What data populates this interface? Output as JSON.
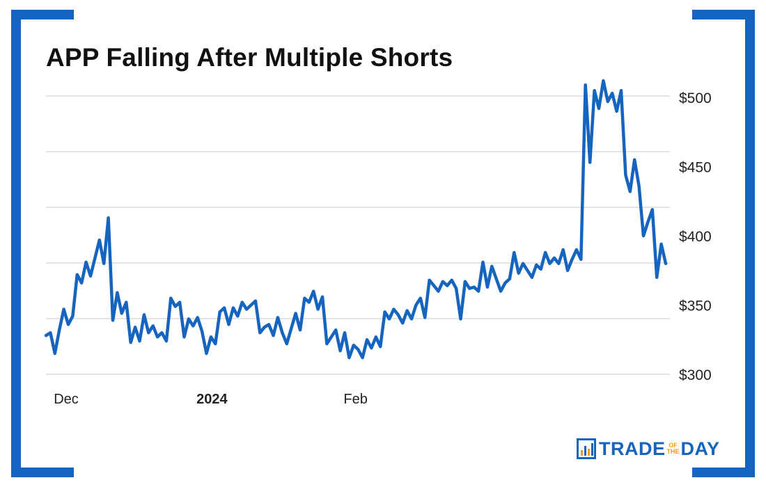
{
  "title": "APP Falling After Multiple Shorts",
  "logo": {
    "word1": "TRADE",
    "small1": "OF",
    "small2": "THE",
    "word2": "DAY",
    "brand_color": "#1565c0",
    "accent_color": "#f39c12",
    "icon": "bar-chart-icon"
  },
  "colors": {
    "line": "#1565c0",
    "grid": "#c8c8c8",
    "frame": "#1565c0"
  },
  "chart_data": {
    "type": "line",
    "title": "APP Falling After Multiple Shorts",
    "xlabel": "",
    "ylabel": "",
    "ylim": [
      300,
      500
    ],
    "y_ticks": [
      {
        "value": 300,
        "label": "$300"
      },
      {
        "value": 350,
        "label": "$350"
      },
      {
        "value": 400,
        "label": "$400"
      },
      {
        "value": 450,
        "label": "$450"
      },
      {
        "value": 500,
        "label": "$500"
      }
    ],
    "x_ticks": [
      {
        "index": 3,
        "label": "Dec",
        "bold": false
      },
      {
        "index": 35,
        "label": "2024",
        "bold": true
      },
      {
        "index": 68,
        "label": "Feb",
        "bold": false
      }
    ],
    "grid": "horizontal",
    "legend": "none",
    "series": [
      {
        "values": [
          328,
          330,
          315,
          332,
          347,
          336,
          342,
          372,
          366,
          381,
          371,
          384,
          397,
          380,
          413,
          339,
          359,
          344,
          352,
          323,
          334,
          324,
          343,
          330,
          335,
          327,
          330,
          324,
          355,
          349,
          352,
          327,
          340,
          335,
          341,
          331,
          315,
          327,
          322,
          345,
          348,
          336,
          348,
          342,
          352,
          347,
          350,
          353,
          330,
          334,
          336,
          328,
          341,
          330,
          322,
          333,
          344,
          332,
          355,
          352,
          360,
          347,
          356,
          322,
          327,
          332,
          317,
          330,
          312,
          321,
          318,
          312,
          325,
          319,
          327,
          320,
          345,
          340,
          347,
          343,
          337,
          346,
          340,
          350,
          355,
          341,
          368,
          364,
          360,
          367,
          364,
          368,
          362,
          340,
          367,
          362,
          363,
          360,
          381,
          363,
          378,
          369,
          360,
          366,
          369,
          388,
          373,
          380,
          375,
          370,
          379,
          376,
          388,
          380,
          384,
          380,
          390,
          375,
          383,
          390,
          383,
          509,
          453,
          505,
          492,
          512,
          497,
          503,
          490,
          505,
          444,
          432,
          455,
          436,
          400,
          410,
          419,
          370,
          394,
          380
        ]
      }
    ]
  }
}
